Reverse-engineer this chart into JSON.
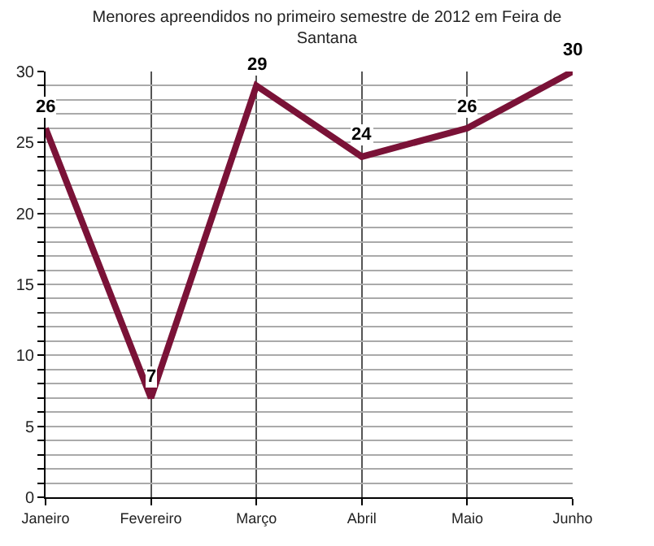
{
  "chart_data": {
    "type": "line",
    "title": "Menores apreendidos no primeiro semestre de 2012 em Feira de Santana",
    "categories": [
      "Janeiro",
      "Fevereiro",
      "Março",
      "Abril",
      "Maio",
      "Junho"
    ],
    "series": [
      {
        "color": "#7a1237",
        "values": [
          26,
          7,
          29,
          24,
          26,
          30
        ]
      }
    ],
    "ylim": [
      0,
      30
    ],
    "yticks": [
      0,
      {
        "value": 1,
        "label": null
      },
      {
        "value": 2,
        "label": null
      },
      {
        "value": 3,
        "label": null
      },
      {
        "value": 4,
        "label": null
      },
      5,
      {
        "value": 6,
        "label": null
      },
      {
        "value": 7,
        "label": null
      },
      {
        "value": 8,
        "label": null
      },
      {
        "value": 9,
        "label": null
      },
      10,
      {
        "value": 11,
        "label": null
      },
      {
        "value": 12,
        "label": null
      },
      {
        "value": 13,
        "label": null
      },
      {
        "value": 14,
        "label": null
      },
      15,
      {
        "value": 16,
        "label": null
      },
      {
        "value": 17,
        "label": null
      },
      {
        "value": 18,
        "label": null
      },
      {
        "value": 19,
        "label": null
      },
      20,
      {
        "value": 21,
        "label": null
      },
      {
        "value": 22,
        "label": null
      },
      {
        "value": 23,
        "label": null
      },
      {
        "value": 24,
        "label": null
      },
      25,
      {
        "value": 26,
        "label": null
      },
      {
        "value": 27,
        "label": null
      },
      {
        "value": 28,
        "label": null
      },
      {
        "value": 29,
        "label": null
      },
      30
    ],
    "grid": true,
    "marker": "none",
    "line_style": "solid",
    "data_labels": true
  }
}
